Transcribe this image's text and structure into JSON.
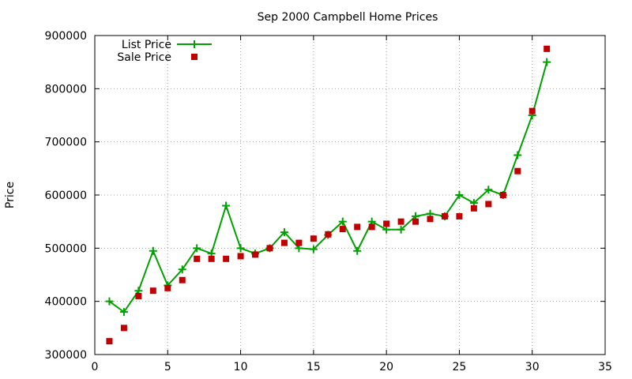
{
  "chart_data": {
    "type": "line",
    "title": "Sep 2000 Campbell Home Prices",
    "xlabel": "",
    "ylabel": "Price",
    "xlim": [
      0,
      35
    ],
    "ylim": [
      300000,
      900000
    ],
    "xticks": [
      0,
      5,
      10,
      15,
      20,
      25,
      30,
      35
    ],
    "yticks": [
      300000,
      400000,
      500000,
      600000,
      700000,
      800000,
      900000
    ],
    "grid": true,
    "legend_position": "top-left",
    "series": [
      {
        "name": "List Price",
        "style": "line-plus",
        "color": "#00a000",
        "x": [
          1,
          2,
          3,
          4,
          5,
          6,
          7,
          8,
          9,
          10,
          11,
          12,
          13,
          14,
          15,
          16,
          17,
          18,
          19,
          20,
          21,
          22,
          23,
          24,
          25,
          26,
          27,
          28,
          29,
          30,
          31
        ],
        "values": [
          400000,
          380000,
          420000,
          495000,
          430000,
          460000,
          500000,
          490000,
          580000,
          500000,
          490000,
          500000,
          530000,
          500000,
          498000,
          525000,
          550000,
          495000,
          550000,
          535000,
          535000,
          560000,
          565000,
          560000,
          600000,
          585000,
          610000,
          600000,
          675000,
          750000,
          850000
        ]
      },
      {
        "name": "Sale Price",
        "style": "square-points",
        "color": "#c00000",
        "x": [
          1,
          2,
          3,
          4,
          5,
          6,
          7,
          8,
          9,
          10,
          11,
          12,
          13,
          14,
          15,
          16,
          17,
          18,
          19,
          20,
          21,
          22,
          23,
          24,
          25,
          26,
          27,
          28,
          29,
          30,
          31
        ],
        "values": [
          325000,
          350000,
          410000,
          420000,
          425000,
          440000,
          480000,
          480000,
          480000,
          485000,
          488000,
          500000,
          510000,
          510000,
          518000,
          526000,
          536000,
          540000,
          540000,
          546000,
          550000,
          550000,
          555000,
          560000,
          560000,
          575000,
          583000,
          600000,
          645000,
          758000,
          875000
        ]
      }
    ]
  }
}
